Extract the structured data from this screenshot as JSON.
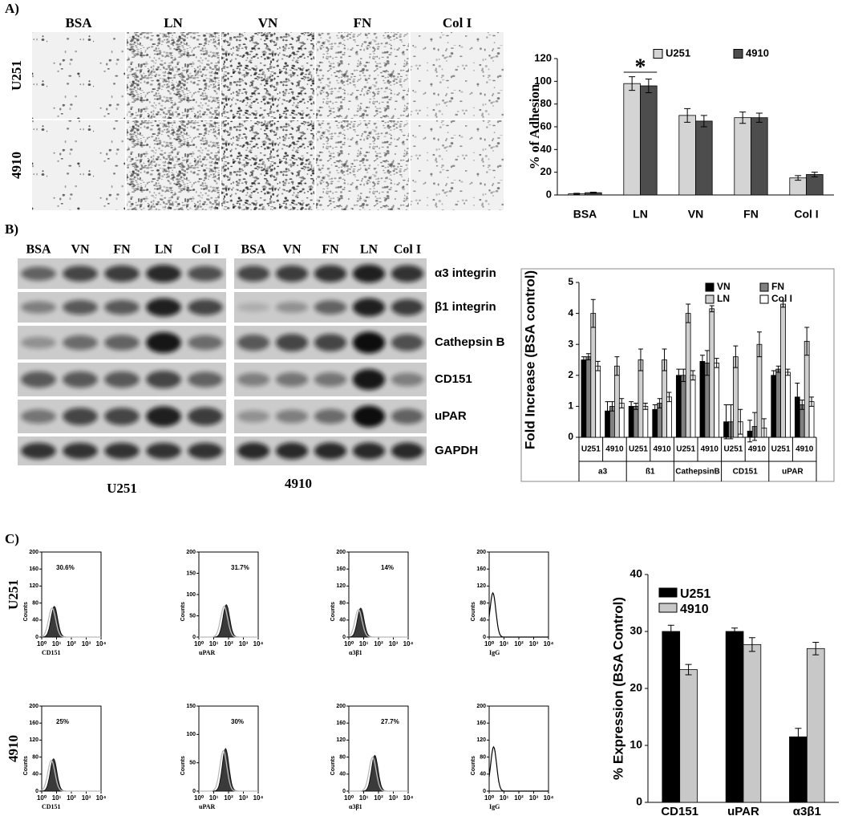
{
  "panel_labels": [
    "A)",
    "B)",
    "C)"
  ],
  "micrographs": {
    "columns": [
      "BSA",
      "LN",
      "VN",
      "FN",
      "Col I"
    ],
    "rows": [
      "U251",
      "4910"
    ]
  },
  "western_blot": {
    "columns": [
      "BSA",
      "VN",
      "FN",
      "LN",
      "Col I"
    ],
    "rows": [
      "α3 integrin",
      "β1 integrin",
      "Cathepsin B",
      "CD151",
      "uPAR",
      "GAPDH"
    ],
    "cell_lines": [
      "U251",
      "4910"
    ]
  },
  "flow_cytometry": {
    "rows": [
      "U251",
      "4910"
    ],
    "ylabel": "Counts",
    "xticks": [
      "10⁰",
      "10¹",
      "10²",
      "10³",
      "10⁴"
    ],
    "plots": [
      {
        "percent": "30.6%",
        "xlabel": "CD151",
        "yticks": [
          0,
          40,
          80,
          120,
          160,
          200
        ]
      },
      {
        "percent": "31.7%",
        "xlabel": "uPAR",
        "yticks": [
          0,
          50,
          100,
          150,
          200
        ]
      },
      {
        "percent": "14%",
        "xlabel": "α3β1",
        "yticks": [
          0,
          40,
          80,
          120,
          160,
          200
        ]
      },
      {
        "xlabel": "IgG",
        "yticks": [
          0,
          40,
          80,
          120,
          160,
          200
        ]
      },
      {
        "percent": "25%",
        "xlabel": "CD151",
        "yticks": [
          0,
          40,
          80,
          120,
          160,
          200
        ]
      },
      {
        "percent": "30%",
        "xlabel": "uPAR",
        "yticks": [
          0,
          50,
          100,
          150
        ]
      },
      {
        "percent": "27.7%",
        "xlabel": "α3β1",
        "yticks": [
          0,
          40,
          80,
          120,
          160,
          200
        ]
      },
      {
        "xlabel": "IgG",
        "yticks": [
          0,
          40,
          80,
          120,
          160,
          200
        ]
      }
    ]
  },
  "chart_data": [
    {
      "type": "bar",
      "ylabel": "% of Adhesion",
      "annotation": "*",
      "categories": [
        "BSA",
        "LN",
        "VN",
        "FN",
        "Col I"
      ],
      "series": [
        {
          "name": "U251",
          "color": "#d4d4d4",
          "values": [
            1,
            98,
            70,
            68,
            15
          ],
          "errors": [
            0.5,
            6,
            6,
            5,
            2
          ]
        },
        {
          "name": "4910",
          "color": "#4d4d4d",
          "values": [
            2,
            96,
            65,
            68,
            18
          ],
          "errors": [
            0.5,
            6,
            5,
            4,
            2
          ]
        }
      ],
      "ylim": [
        0,
        120
      ],
      "yticks": [
        0,
        20,
        40,
        60,
        80,
        100,
        120
      ]
    },
    {
      "type": "bar",
      "ylabel": "Fold Increase (BSA control)",
      "categories": [
        "U251",
        "4910",
        "U251",
        "4910",
        "U251",
        "4910",
        "U251",
        "4910",
        "U251",
        "4910"
      ],
      "groups": [
        "a3",
        "ß1",
        "CathepsinB",
        "CD151",
        "uPAR"
      ],
      "series": [
        {
          "name": "VN",
          "color": "#000000",
          "values": [
            2.5,
            0.85,
            1.0,
            0.9,
            2.0,
            2.45,
            0.5,
            0.2,
            2.0,
            1.3
          ],
          "errors": [
            0.1,
            0.3,
            0.15,
            0.15,
            0.2,
            0.2,
            0.55,
            0.35,
            0.15,
            0.45
          ]
        },
        {
          "name": "FN",
          "color": "#808080",
          "values": [
            2.6,
            1.0,
            1.0,
            1.1,
            2.0,
            2.4,
            0.5,
            0.35,
            2.2,
            1.05
          ],
          "errors": [
            0.1,
            0.15,
            0.1,
            0.15,
            0.2,
            0.4,
            0.55,
            0.45,
            0.1,
            0.15
          ]
        },
        {
          "name": "LN",
          "color": "#cfcfcf",
          "values": [
            4.0,
            2.3,
            2.5,
            2.5,
            4.0,
            4.15,
            2.6,
            3.0,
            4.3,
            3.1
          ],
          "errors": [
            0.45,
            0.3,
            0.35,
            0.35,
            0.3,
            0.1,
            0.35,
            0.4,
            0.1,
            0.45
          ]
        },
        {
          "name": "Col I",
          "color": "#ffffff",
          "values": [
            2.3,
            1.1,
            1.0,
            1.3,
            2.0,
            2.4,
            0.5,
            0.3,
            2.1,
            1.15
          ],
          "errors": [
            0.15,
            0.15,
            0.1,
            0.15,
            0.15,
            0.15,
            0.4,
            0.3,
            0.1,
            0.15
          ]
        }
      ],
      "ylim": [
        0,
        5
      ],
      "yticks": [
        0,
        1,
        2,
        3,
        4,
        5
      ]
    },
    {
      "type": "bar",
      "ylabel": "% Expression (BSA Control)",
      "categories": [
        "CD151",
        "uPAR",
        "α3β1"
      ],
      "series": [
        {
          "name": "U251",
          "color": "#000000",
          "values": [
            30,
            30,
            11.5
          ],
          "errors": [
            1.1,
            0.6,
            1.5
          ]
        },
        {
          "name": "4910",
          "color": "#c8c8c8",
          "values": [
            23.3,
            27.7,
            27
          ],
          "errors": [
            0.9,
            1.2,
            1.1
          ]
        }
      ],
      "ylim": [
        0,
        40
      ],
      "yticks": [
        0,
        10,
        20,
        30,
        40
      ]
    }
  ]
}
